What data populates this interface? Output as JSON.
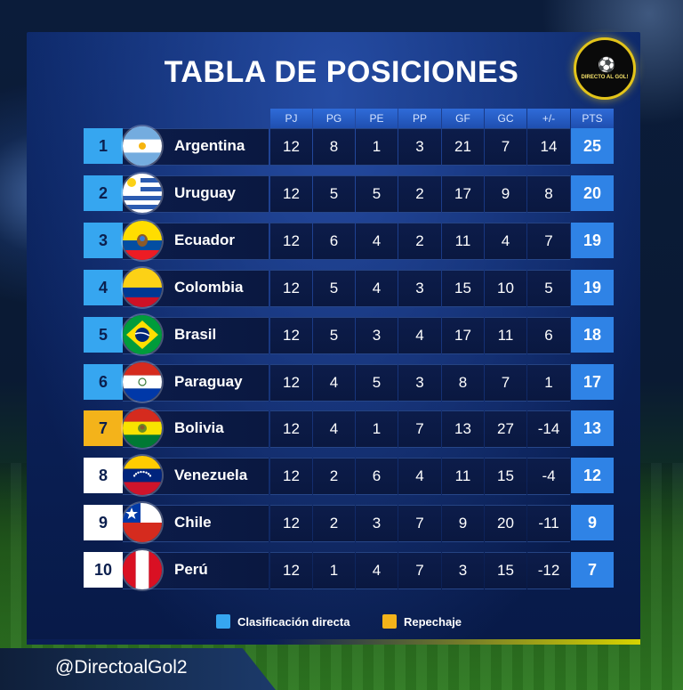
{
  "title": "TABLA DE POSICIONES",
  "logo": {
    "text": "DIRECTO AL GOL!",
    "icon": "soccer-ball-logo-icon"
  },
  "columns": [
    "PJ",
    "PG",
    "PE",
    "PP",
    "GF",
    "GC",
    "+/-",
    "PTS"
  ],
  "colors": {
    "direct": "#36a6f0",
    "repechaje": "#f4b31a",
    "out": "#ffffff",
    "pts_bg": "#2f83e6"
  },
  "rows": [
    {
      "pos": "1",
      "team": "Argentina",
      "status": "direct",
      "flag": "argentina-flag-icon",
      "pj": "12",
      "pg": "8",
      "pe": "1",
      "pp": "3",
      "gf": "21",
      "gc": "7",
      "dif": "14",
      "pts": "25"
    },
    {
      "pos": "2",
      "team": "Uruguay",
      "status": "direct",
      "flag": "uruguay-flag-icon",
      "pj": "12",
      "pg": "5",
      "pe": "5",
      "pp": "2",
      "gf": "17",
      "gc": "9",
      "dif": "8",
      "pts": "20"
    },
    {
      "pos": "3",
      "team": "Ecuador",
      "status": "direct",
      "flag": "ecuador-flag-icon",
      "pj": "12",
      "pg": "6",
      "pe": "4",
      "pp": "2",
      "gf": "11",
      "gc": "4",
      "dif": "7",
      "pts": "19"
    },
    {
      "pos": "4",
      "team": "Colombia",
      "status": "direct",
      "flag": "colombia-flag-icon",
      "pj": "12",
      "pg": "5",
      "pe": "4",
      "pp": "3",
      "gf": "15",
      "gc": "10",
      "dif": "5",
      "pts": "19"
    },
    {
      "pos": "5",
      "team": "Brasil",
      "status": "direct",
      "flag": "brazil-flag-icon",
      "pj": "12",
      "pg": "5",
      "pe": "3",
      "pp": "4",
      "gf": "17",
      "gc": "11",
      "dif": "6",
      "pts": "18"
    },
    {
      "pos": "6",
      "team": "Paraguay",
      "status": "direct",
      "flag": "paraguay-flag-icon",
      "pj": "12",
      "pg": "4",
      "pe": "5",
      "pp": "3",
      "gf": "8",
      "gc": "7",
      "dif": "1",
      "pts": "17"
    },
    {
      "pos": "7",
      "team": "Bolivia",
      "status": "repechaje",
      "flag": "bolivia-flag-icon",
      "pj": "12",
      "pg": "4",
      "pe": "1",
      "pp": "7",
      "gf": "13",
      "gc": "27",
      "dif": "-14",
      "pts": "13"
    },
    {
      "pos": "8",
      "team": "Venezuela",
      "status": "out",
      "flag": "venezuela-flag-icon",
      "pj": "12",
      "pg": "2",
      "pe": "6",
      "pp": "4",
      "gf": "11",
      "gc": "15",
      "dif": "-4",
      "pts": "12"
    },
    {
      "pos": "9",
      "team": "Chile",
      "status": "out",
      "flag": "chile-flag-icon",
      "pj": "12",
      "pg": "2",
      "pe": "3",
      "pp": "7",
      "gf": "9",
      "gc": "20",
      "dif": "-11",
      "pts": "9"
    },
    {
      "pos": "10",
      "team": "Perú",
      "status": "out",
      "flag": "peru-flag-icon",
      "pj": "12",
      "pg": "1",
      "pe": "4",
      "pp": "7",
      "gf": "3",
      "gc": "15",
      "dif": "-12",
      "pts": "7"
    }
  ],
  "legend": {
    "direct": "Clasificación directa",
    "repechaje": "Repechaje"
  },
  "handle": "@DirectoalGol2"
}
